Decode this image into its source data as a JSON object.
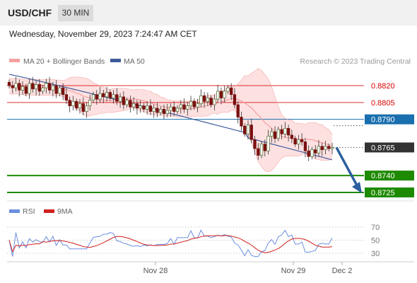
{
  "header": {
    "symbol": "USD/CHF",
    "timeframe": "30 MIN"
  },
  "datetime": "Wednesday, November 29, 2023 7:24:47 AM CET",
  "legend": {
    "bollinger": "MA 20 + Bollinger Bands",
    "ma50": "MA 50",
    "credit": "Research © 2023 Trading Central"
  },
  "rsi_legend": {
    "rsi": "RSI",
    "ma": "9MA"
  },
  "colors": {
    "bollinger": "#f5a0a0",
    "band_fill": "#fde1e1",
    "ma50": "#3e5a9a",
    "resistance": "#d60000",
    "pivot": "#1a6fae",
    "current": "#333333",
    "support": "#1e8a00",
    "arrow": "#2c5f9e",
    "rsi": "#6b8fe0",
    "rsi_ma": "#d12020"
  },
  "chart_data": [
    {
      "type": "candlestick",
      "title": "USD/CHF",
      "timeframe": "30 MIN",
      "ylim": [
        0.872,
        0.884
      ],
      "x_ticks": [
        "Nov 28",
        "Nov 29",
        "Dec 2"
      ],
      "indicators": [
        "MA 20 + Bollinger Bands",
        "MA 50"
      ],
      "levels": [
        {
          "label": "0.8820",
          "value": 0.882,
          "kind": "resistance"
        },
        {
          "label": "0.8805",
          "value": 0.8805,
          "kind": "resistance"
        },
        {
          "label": "0.8790",
          "value": 0.879,
          "kind": "pivot"
        },
        {
          "label": "0.8765",
          "value": 0.8765,
          "kind": "current"
        },
        {
          "label": "0.8740",
          "value": 0.874,
          "kind": "support"
        },
        {
          "label": "0.8725",
          "value": 0.8725,
          "kind": "support"
        }
      ],
      "close_series": [
        0.882,
        0.8818,
        0.8822,
        0.8816,
        0.8819,
        0.8813,
        0.8822,
        0.8817,
        0.8821,
        0.8815,
        0.8818,
        0.8822,
        0.8816,
        0.882,
        0.8813,
        0.8818,
        0.8812,
        0.8807,
        0.8802,
        0.8806,
        0.88,
        0.8804,
        0.8797,
        0.8802,
        0.8807,
        0.8812,
        0.8808,
        0.8813,
        0.881,
        0.8814,
        0.8809,
        0.8812,
        0.8806,
        0.881,
        0.8803,
        0.8807,
        0.8801,
        0.8804,
        0.88,
        0.8802,
        0.8799,
        0.8802,
        0.8797,
        0.88,
        0.8796,
        0.8799,
        0.8795,
        0.8798,
        0.8801,
        0.8797,
        0.88,
        0.8803,
        0.8799,
        0.8802,
        0.8806,
        0.8801,
        0.8804,
        0.8811,
        0.8806,
        0.8809,
        0.8803,
        0.8808,
        0.8815,
        0.8809,
        0.8815,
        0.8818,
        0.8812,
        0.8803,
        0.8792,
        0.8784,
        0.8777,
        0.8785,
        0.8772,
        0.8764,
        0.8758,
        0.8768,
        0.8762,
        0.8775,
        0.8779,
        0.8773,
        0.8781,
        0.8777,
        0.8782,
        0.8776,
        0.8773,
        0.8768,
        0.8772,
        0.877,
        0.8762,
        0.8757,
        0.8763,
        0.876,
        0.8766,
        0.8763,
        0.8766,
        0.8764,
        0.8765
      ]
    },
    {
      "type": "line",
      "title": "RSI",
      "series": [
        {
          "name": "RSI"
        },
        {
          "name": "9MA"
        }
      ],
      "ylim": [
        20,
        80
      ],
      "y_ticks": [
        30,
        50,
        70
      ]
    }
  ]
}
